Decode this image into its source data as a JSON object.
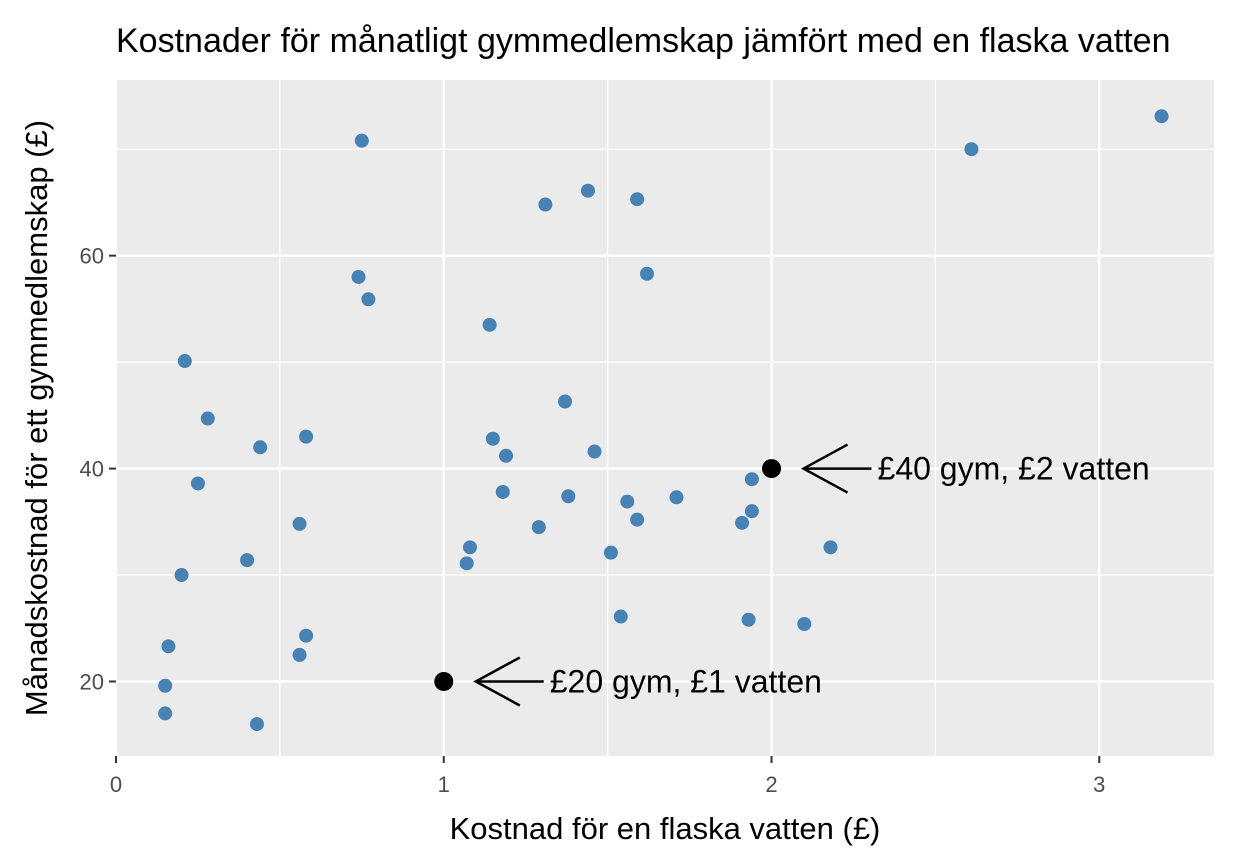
{
  "chart_data": {
    "type": "scatter",
    "title": "Kostnader för månatligt gymmedlemskap jämfört med en flaska vatten",
    "xlabel": "Kostnad för en flaska vatten (£)",
    "ylabel": "Månadskostnad för ett gymmedlemskap (£)",
    "xlim": [
      0,
      3.35
    ],
    "ylim": [
      13,
      76.5
    ],
    "x_ticks": [
      0,
      1,
      2,
      3
    ],
    "y_ticks": [
      20,
      40,
      60
    ],
    "grid": true,
    "point_color": "#4682b4",
    "highlight_color": "#000000",
    "panel_background": "#ebebeb",
    "points": [
      {
        "x": 0.15,
        "y": 17.0
      },
      {
        "x": 0.15,
        "y": 19.6
      },
      {
        "x": 0.16,
        "y": 23.3
      },
      {
        "x": 0.2,
        "y": 30.0
      },
      {
        "x": 0.21,
        "y": 50.1
      },
      {
        "x": 0.25,
        "y": 38.6
      },
      {
        "x": 0.28,
        "y": 44.7
      },
      {
        "x": 0.4,
        "y": 31.4
      },
      {
        "x": 0.43,
        "y": 16.0
      },
      {
        "x": 0.44,
        "y": 42.0
      },
      {
        "x": 0.56,
        "y": 34.8
      },
      {
        "x": 0.56,
        "y": 22.5
      },
      {
        "x": 0.58,
        "y": 24.3
      },
      {
        "x": 0.58,
        "y": 43.0
      },
      {
        "x": 0.74,
        "y": 58.0
      },
      {
        "x": 0.75,
        "y": 70.8
      },
      {
        "x": 0.77,
        "y": 55.9
      },
      {
        "x": 1.07,
        "y": 31.1
      },
      {
        "x": 1.08,
        "y": 32.6
      },
      {
        "x": 1.14,
        "y": 53.5
      },
      {
        "x": 1.15,
        "y": 42.8
      },
      {
        "x": 1.18,
        "y": 37.8
      },
      {
        "x": 1.19,
        "y": 41.2
      },
      {
        "x": 1.29,
        "y": 34.5
      },
      {
        "x": 1.31,
        "y": 64.8
      },
      {
        "x": 1.37,
        "y": 46.3
      },
      {
        "x": 1.38,
        "y": 37.4
      },
      {
        "x": 1.44,
        "y": 66.1
      },
      {
        "x": 1.46,
        "y": 41.6
      },
      {
        "x": 1.51,
        "y": 32.1
      },
      {
        "x": 1.54,
        "y": 26.1
      },
      {
        "x": 1.56,
        "y": 36.9
      },
      {
        "x": 1.59,
        "y": 35.2
      },
      {
        "x": 1.59,
        "y": 65.3
      },
      {
        "x": 1.62,
        "y": 58.3
      },
      {
        "x": 1.71,
        "y": 37.3
      },
      {
        "x": 1.91,
        "y": 34.9
      },
      {
        "x": 1.93,
        "y": 25.8
      },
      {
        "x": 1.94,
        "y": 36.0
      },
      {
        "x": 1.94,
        "y": 39.0
      },
      {
        "x": 2.1,
        "y": 25.4
      },
      {
        "x": 2.18,
        "y": 32.6
      },
      {
        "x": 2.61,
        "y": 70.0
      },
      {
        "x": 3.19,
        "y": 73.1
      }
    ],
    "highlights": [
      {
        "x": 1,
        "y": 20,
        "label": "£20 gym, £1 vatten"
      },
      {
        "x": 2,
        "y": 40,
        "label": "£40 gym, £2 vatten"
      }
    ]
  }
}
